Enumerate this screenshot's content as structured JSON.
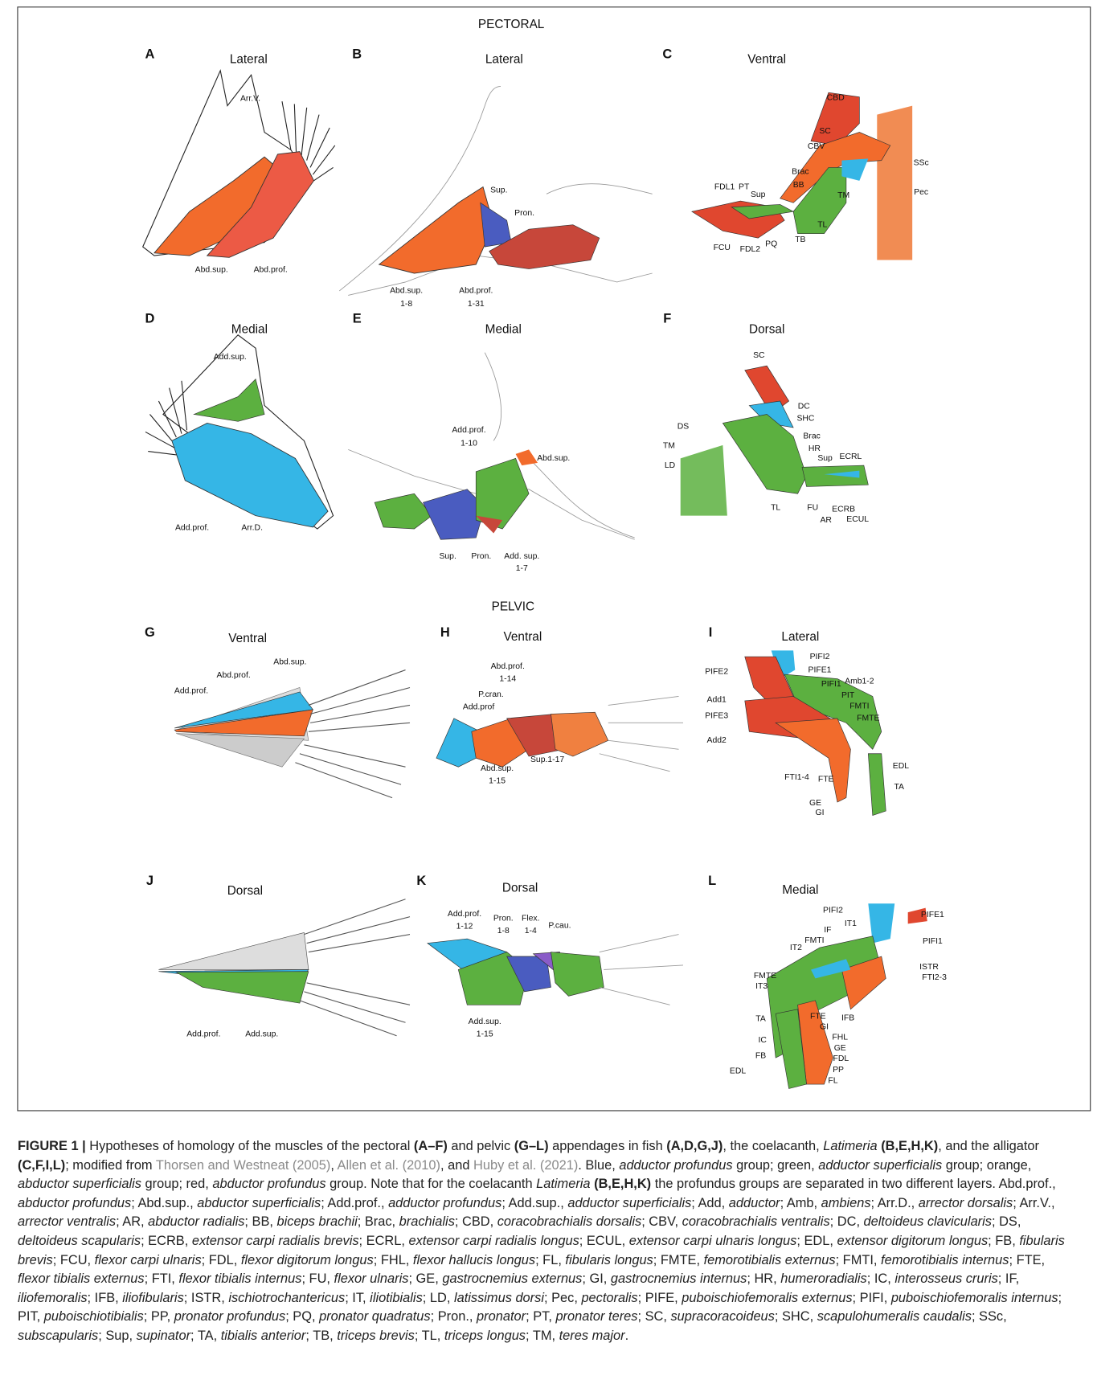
{
  "sections": {
    "pectoral": "PECTORAL",
    "pelvic": "PELVIC"
  },
  "panels": [
    {
      "letter": "A",
      "view": "Lateral",
      "labels": [
        "Arr.V.",
        "Abd.sup.",
        "Abd.prof."
      ]
    },
    {
      "letter": "B",
      "view": "Lateral",
      "labels": [
        "Sup.",
        "Pron.",
        "Abd.sup.",
        "1-8",
        "Abd.prof.",
        "1-31"
      ]
    },
    {
      "letter": "C",
      "view": "Ventral",
      "labels": [
        "CBD",
        "SC",
        "CBV",
        "Brac",
        "BB",
        "SSc",
        "Pec",
        "FDL1",
        "PT",
        "Sup",
        "TM",
        "TL",
        "FCU",
        "FDL2",
        "PQ",
        "TB"
      ]
    },
    {
      "letter": "D",
      "view": "Medial",
      "labels": [
        "Add.sup.",
        "Add.prof.",
        "Arr.D."
      ]
    },
    {
      "letter": "E",
      "view": "Medial",
      "labels": [
        "Add.prof.",
        "1-10",
        "Abd.sup.",
        "Sup.",
        "Pron.",
        "Add. sup.",
        "1-7"
      ]
    },
    {
      "letter": "F",
      "view": "Dorsal",
      "labels": [
        "SC",
        "DC",
        "SHC",
        "DS",
        "Brac",
        "TM",
        "HR",
        "Sup",
        "ECRL",
        "LD",
        "TL",
        "FU",
        "ECRB",
        "AR",
        "ECUL"
      ]
    },
    {
      "letter": "G",
      "view": "Ventral",
      "labels": [
        "Abd.sup.",
        "Abd.prof.",
        "Add.prof."
      ]
    },
    {
      "letter": "H",
      "view": "Ventral",
      "labels": [
        "Abd.prof.",
        "1-14",
        "P.cran.",
        "Add.prof",
        "Abd.sup.",
        "1-15",
        "Sup.1-17"
      ]
    },
    {
      "letter": "I",
      "view": "Lateral",
      "labels": [
        "PIFI2",
        "PIFE2",
        "PIFE1",
        "PIFI1",
        "Amb1-2",
        "PIT",
        "Add1",
        "FMTI",
        "FMTE",
        "PIFE3",
        "Add2",
        "EDL",
        "FTI1-4",
        "FTE",
        "TA",
        "GE",
        "GI"
      ]
    },
    {
      "letter": "J",
      "view": "Dorsal",
      "labels": [
        "Add.prof.",
        "Add.sup."
      ]
    },
    {
      "letter": "K",
      "view": "Dorsal",
      "labels": [
        "Add.prof.",
        "1-12",
        "Pron.",
        "1-8",
        "Flex.",
        "1-4",
        "P.cau.",
        "Add.sup.",
        "1-15"
      ]
    },
    {
      "letter": "L",
      "view": "Medial",
      "labels": [
        "PIFI2",
        "PIFE1",
        "IT1",
        "IF",
        "FMTI",
        "PIFI1",
        "IT2",
        "ISTR",
        "FMTE",
        "FTI2-3",
        "IT3",
        "FTE",
        "IFB",
        "TA",
        "GI",
        "FHL",
        "IC",
        "GE",
        "FB",
        "FDL",
        "EDL",
        "PP",
        "FL"
      ]
    }
  ],
  "caption": {
    "segments": [
      [
        "b",
        "FIGURE 1 | "
      ],
      [
        "n",
        "Hypotheses of homology of the muscles of the pectoral "
      ],
      [
        "b",
        "(A–F)"
      ],
      [
        "n",
        " and pelvic "
      ],
      [
        "b",
        "(G–L)"
      ],
      [
        "n",
        " appendages in fish "
      ],
      [
        "b",
        "(A,D,G,J)"
      ],
      [
        "n",
        ", the coelacanth, "
      ],
      [
        "i",
        "Latimeria"
      ],
      [
        "n",
        " "
      ],
      [
        "b",
        "(B,E,H,K)"
      ],
      [
        "n",
        ", and the alligator "
      ],
      [
        "b",
        "(C,F,I,L)"
      ],
      [
        "n",
        "; modified from "
      ],
      [
        "l",
        "Thorsen and Westneat (2005)"
      ],
      [
        "n",
        ", "
      ],
      [
        "l",
        "Allen et al. (2010)"
      ],
      [
        "n",
        ", and "
      ],
      [
        "l",
        "Huby et al. (2021)"
      ],
      [
        "n",
        ". Blue, "
      ],
      [
        "i",
        "adductor profundus"
      ],
      [
        "n",
        " group; green, "
      ],
      [
        "i",
        "adductor superficialis"
      ],
      [
        "n",
        " group; orange, "
      ],
      [
        "i",
        "abductor superficialis"
      ],
      [
        "n",
        " group; red, "
      ],
      [
        "i",
        "abductor profundus"
      ],
      [
        "n",
        " group. Note that for the coelacanth "
      ],
      [
        "i",
        "Latimeria"
      ],
      [
        "n",
        " "
      ],
      [
        "b",
        "(B,E,H,K)"
      ],
      [
        "n",
        " the profundus groups are separated in two different layers. Abd.prof., "
      ],
      [
        "i",
        "abductor profundus"
      ],
      [
        "n",
        "; Abd.sup., "
      ],
      [
        "i",
        "abductor superficialis"
      ],
      [
        "n",
        "; Add.prof., "
      ],
      [
        "i",
        "adductor profundus"
      ],
      [
        "n",
        "; Add.sup., "
      ],
      [
        "i",
        "adductor superficialis"
      ],
      [
        "n",
        "; Add, "
      ],
      [
        "i",
        "adductor"
      ],
      [
        "n",
        "; Amb, "
      ],
      [
        "i",
        "ambiens"
      ],
      [
        "n",
        "; Arr.D., "
      ],
      [
        "i",
        "arrector dorsalis"
      ],
      [
        "n",
        "; Arr.V., "
      ],
      [
        "i",
        "arrector ventralis"
      ],
      [
        "n",
        "; AR, "
      ],
      [
        "i",
        "abductor radialis"
      ],
      [
        "n",
        "; BB, "
      ],
      [
        "i",
        "biceps brachii"
      ],
      [
        "n",
        "; Brac, "
      ],
      [
        "i",
        "brachialis"
      ],
      [
        "n",
        "; CBD, "
      ],
      [
        "i",
        "coracobrachialis dorsalis"
      ],
      [
        "n",
        "; CBV, "
      ],
      [
        "i",
        "coracobrachialis ventralis"
      ],
      [
        "n",
        "; DC, "
      ],
      [
        "i",
        "deltoideus clavicularis"
      ],
      [
        "n",
        "; DS, "
      ],
      [
        "i",
        "deltoideus scapularis"
      ],
      [
        "n",
        "; ECRB, "
      ],
      [
        "i",
        "extensor carpi radialis brevis"
      ],
      [
        "n",
        "; ECRL, "
      ],
      [
        "i",
        "extensor carpi radialis longus"
      ],
      [
        "n",
        "; ECUL, "
      ],
      [
        "i",
        "extensor carpi ulnaris longus"
      ],
      [
        "n",
        "; EDL, "
      ],
      [
        "i",
        "extensor digitorum longus"
      ],
      [
        "n",
        "; FB, "
      ],
      [
        "i",
        "fibularis brevis"
      ],
      [
        "n",
        "; FCU, "
      ],
      [
        "i",
        "flexor carpi ulnaris"
      ],
      [
        "n",
        "; FDL, "
      ],
      [
        "i",
        "flexor digitorum longus"
      ],
      [
        "n",
        "; FHL, "
      ],
      [
        "i",
        "flexor hallucis longus"
      ],
      [
        "n",
        "; FL, "
      ],
      [
        "i",
        "fibularis longus"
      ],
      [
        "n",
        "; FMTE, "
      ],
      [
        "i",
        "femorotibialis externus"
      ],
      [
        "n",
        "; FMTI, "
      ],
      [
        "i",
        "femorotibialis internus"
      ],
      [
        "n",
        "; FTE, "
      ],
      [
        "i",
        "flexor tibialis externus"
      ],
      [
        "n",
        "; FTI, "
      ],
      [
        "i",
        "flexor tibialis internus"
      ],
      [
        "n",
        "; FU, "
      ],
      [
        "i",
        "flexor ulnaris"
      ],
      [
        "n",
        "; GE, "
      ],
      [
        "i",
        "gastrocnemius externus"
      ],
      [
        "n",
        "; GI, "
      ],
      [
        "i",
        "gastrocnemius internus"
      ],
      [
        "n",
        "; HR, "
      ],
      [
        "i",
        "humeroradialis"
      ],
      [
        "n",
        "; IC, "
      ],
      [
        "i",
        "interosseus cruris"
      ],
      [
        "n",
        "; IF, "
      ],
      [
        "i",
        "iliofemoralis"
      ],
      [
        "n",
        "; IFB, "
      ],
      [
        "i",
        "iliofibularis"
      ],
      [
        "n",
        "; ISTR, "
      ],
      [
        "i",
        "ischiotrochantericus"
      ],
      [
        "n",
        "; IT, "
      ],
      [
        "i",
        "iliotibialis"
      ],
      [
        "n",
        "; LD, "
      ],
      [
        "i",
        "latissimus dorsi"
      ],
      [
        "n",
        "; Pec, "
      ],
      [
        "i",
        "pectoralis"
      ],
      [
        "n",
        "; PIFE, "
      ],
      [
        "i",
        "puboischiofemoralis externus"
      ],
      [
        "n",
        "; PIFI, "
      ],
      [
        "i",
        "puboischiofemoralis internus"
      ],
      [
        "n",
        "; PIT, "
      ],
      [
        "i",
        "puboischiotibialis"
      ],
      [
        "n",
        "; PP, "
      ],
      [
        "i",
        "pronator profundus"
      ],
      [
        "n",
        "; PQ, "
      ],
      [
        "i",
        "pronator quadratus"
      ],
      [
        "n",
        "; Pron., "
      ],
      [
        "i",
        "pronator"
      ],
      [
        "n",
        "; PT, "
      ],
      [
        "i",
        "pronator teres"
      ],
      [
        "n",
        "; SC, "
      ],
      [
        "i",
        "supracoracoideus"
      ],
      [
        "n",
        "; SHC, "
      ],
      [
        "i",
        "scapulohumeralis caudalis"
      ],
      [
        "n",
        "; SSc, "
      ],
      [
        "i",
        "subscapularis"
      ],
      [
        "n",
        "; Sup, "
      ],
      [
        "i",
        "supinator"
      ],
      [
        "n",
        "; TA, "
      ],
      [
        "i",
        "tibialis anterior"
      ],
      [
        "n",
        "; TB, "
      ],
      [
        "i",
        "triceps brevis"
      ],
      [
        "n",
        "; TL, "
      ],
      [
        "i",
        "triceps longus"
      ],
      [
        "n",
        "; TM, "
      ],
      [
        "i",
        "teres major"
      ],
      [
        "n",
        "."
      ]
    ]
  }
}
